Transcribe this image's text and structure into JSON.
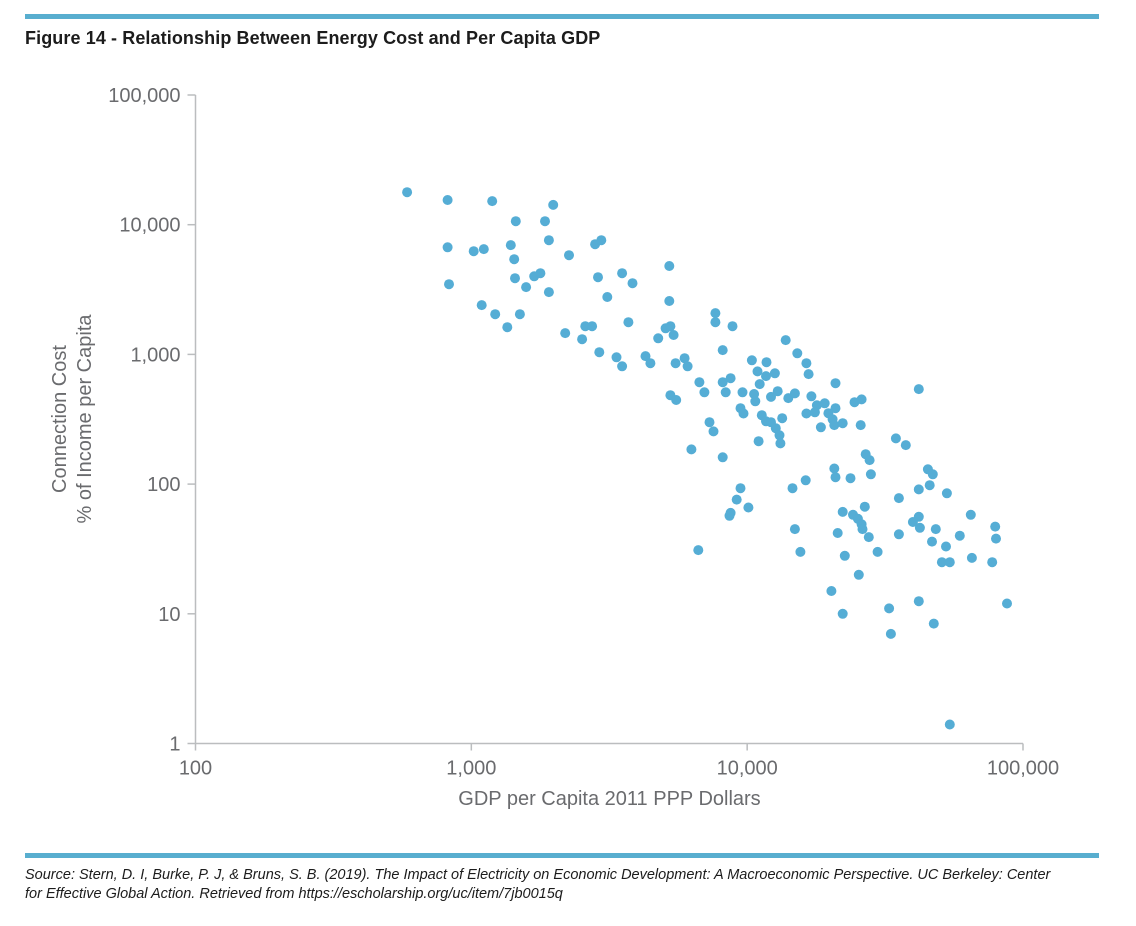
{
  "title": "Figure 14 - Relationship Between Energy Cost and Per Capita GDP",
  "source_line1": "Source: Stern, D. I, Burke, P. J, & Bruns, S. B. (2019). The Impact of Electricity on Economic Development: A Macroeconomic Perspective. UC Berkeley: Center",
  "source_line2": "for Effective Global Action. Retrieved from https://escholarship.org/uc/item/7jb0015q",
  "colors": {
    "accent_bar": "#58AECF",
    "dot": "#55ADD5",
    "axis": "#BBBDBF",
    "tick_text": "#6A6B6E",
    "title_text": "#1C1C1C"
  },
  "chart_data": {
    "type": "scatter",
    "title": "Figure 14 - Relationship Between Energy Cost and Per Capita GDP",
    "xlabel": "GDP per Capita 2011 PPP Dollars",
    "ylabel_line1": "Connection Cost",
    "ylabel_line2": "% of Income per Capita",
    "x_scale": "log",
    "y_scale": "log",
    "xlim": [
      100,
      100000
    ],
    "ylim": [
      1,
      100000
    ],
    "grid": false,
    "legend": "none",
    "x_ticks": [
      "100",
      "1,000",
      "10,000",
      "100,000"
    ],
    "y_ticks": [
      "1",
      "10",
      "100",
      "1,000",
      "10,000",
      "100,000"
    ],
    "points": [
      [
        585,
        17800
      ],
      [
        820,
        15500
      ],
      [
        1190,
        15200
      ],
      [
        1980,
        14200
      ],
      [
        1450,
        10650
      ],
      [
        1850,
        10650
      ],
      [
        820,
        6700
      ],
      [
        1020,
        6250
      ],
      [
        1110,
        6480
      ],
      [
        1390,
        6960
      ],
      [
        1910,
        7600
      ],
      [
        2260,
        5820
      ],
      [
        2810,
        7080
      ],
      [
        2960,
        7600
      ],
      [
        830,
        3480
      ],
      [
        1430,
        5420
      ],
      [
        1440,
        3870
      ],
      [
        1580,
        3300
      ],
      [
        1690,
        4000
      ],
      [
        1780,
        4230
      ],
      [
        1910,
        3020
      ],
      [
        1090,
        2400
      ],
      [
        1220,
        2040
      ],
      [
        1350,
        1620
      ],
      [
        1500,
        2040
      ],
      [
        2190,
        1460
      ],
      [
        2520,
        1310
      ],
      [
        2590,
        1650
      ],
      [
        2740,
        1650
      ],
      [
        2880,
        3940
      ],
      [
        3110,
        2770
      ],
      [
        3520,
        4230
      ],
      [
        3840,
        3540
      ],
      [
        5220,
        4800
      ],
      [
        5220,
        2580
      ],
      [
        2910,
        1040
      ],
      [
        3360,
        950
      ],
      [
        3520,
        810
      ],
      [
        3710,
        1770
      ],
      [
        4280,
        970
      ],
      [
        4460,
        855
      ],
      [
        4760,
        1330
      ],
      [
        5060,
        1590
      ],
      [
        5270,
        1650
      ],
      [
        5410,
        1410
      ],
      [
        5500,
        855
      ],
      [
        5930,
        935
      ],
      [
        6080,
        810
      ],
      [
        5270,
        485
      ],
      [
        5530,
        445
      ],
      [
        6710,
        610
      ],
      [
        7000,
        510
      ],
      [
        7300,
        300
      ],
      [
        7550,
        255
      ],
      [
        6280,
        185
      ],
      [
        7670,
        2080
      ],
      [
        7670,
        1770
      ],
      [
        8150,
        1080
      ],
      [
        8630,
        57
      ],
      [
        6650,
        31
      ],
      [
        8850,
        1650
      ],
      [
        13800,
        1290
      ],
      [
        10400,
        900
      ],
      [
        11750,
        870
      ],
      [
        15200,
        1020
      ],
      [
        16400,
        855
      ],
      [
        10900,
        740
      ],
      [
        11700,
        680
      ],
      [
        12600,
        715
      ],
      [
        16700,
        705
      ],
      [
        8710,
        655
      ],
      [
        8150,
        610
      ],
      [
        8360,
        510
      ],
      [
        9620,
        510
      ],
      [
        10600,
        495
      ],
      [
        11100,
        590
      ],
      [
        12200,
        470
      ],
      [
        12900,
        520
      ],
      [
        14100,
        460
      ],
      [
        14900,
        500
      ],
      [
        20900,
        600
      ],
      [
        41900,
        540
      ],
      [
        9460,
        385
      ],
      [
        9700,
        350
      ],
      [
        10700,
        435
      ],
      [
        17100,
        475
      ],
      [
        17900,
        405
      ],
      [
        19100,
        420
      ],
      [
        20900,
        385
      ],
      [
        16400,
        350
      ],
      [
        17600,
        358
      ],
      [
        19700,
        352
      ],
      [
        20400,
        316
      ],
      [
        24500,
        428
      ],
      [
        26000,
        450
      ],
      [
        11300,
        340
      ],
      [
        11700,
        305
      ],
      [
        12200,
        300
      ],
      [
        12700,
        270
      ],
      [
        13400,
        322
      ],
      [
        18500,
        274
      ],
      [
        20700,
        285
      ],
      [
        22200,
        295
      ],
      [
        25800,
        285
      ],
      [
        11000,
        214
      ],
      [
        13100,
        238
      ],
      [
        13200,
        206
      ],
      [
        8150,
        161
      ],
      [
        34600,
        225
      ],
      [
        37600,
        200
      ],
      [
        26900,
        170
      ],
      [
        27800,
        153
      ],
      [
        20700,
        132
      ],
      [
        20900,
        113
      ],
      [
        23700,
        111
      ],
      [
        28100,
        119
      ],
      [
        16300,
        107
      ],
      [
        9460,
        93
      ],
      [
        14600,
        93
      ],
      [
        45200,
        130
      ],
      [
        47100,
        119
      ],
      [
        41900,
        91
      ],
      [
        45900,
        98
      ],
      [
        53000,
        85
      ],
      [
        35500,
        78
      ],
      [
        9160,
        76
      ],
      [
        10100,
        66
      ],
      [
        8710,
        60
      ],
      [
        22200,
        61
      ],
      [
        24200,
        58
      ],
      [
        25200,
        54
      ],
      [
        26000,
        49
      ],
      [
        26700,
        67
      ],
      [
        41900,
        56
      ],
      [
        64700,
        58
      ],
      [
        14900,
        45
      ],
      [
        15600,
        30
      ],
      [
        21300,
        42
      ],
      [
        26200,
        45
      ],
      [
        27600,
        39
      ],
      [
        22600,
        28
      ],
      [
        25400,
        20
      ],
      [
        29700,
        30
      ],
      [
        35500,
        41
      ],
      [
        39900,
        51
      ],
      [
        42300,
        46
      ],
      [
        46800,
        36
      ],
      [
        48300,
        45
      ],
      [
        52600,
        33
      ],
      [
        50800,
        25
      ],
      [
        54300,
        25
      ],
      [
        59000,
        40
      ],
      [
        65300,
        27
      ],
      [
        77300,
        25
      ],
      [
        79300,
        47
      ],
      [
        79800,
        38
      ],
      [
        20200,
        15
      ],
      [
        22200,
        10
      ],
      [
        32700,
        11
      ],
      [
        41900,
        12.5
      ],
      [
        47500,
        8.4
      ],
      [
        33200,
        7
      ],
      [
        87500,
        12
      ],
      [
        54300,
        1.4
      ]
    ]
  }
}
